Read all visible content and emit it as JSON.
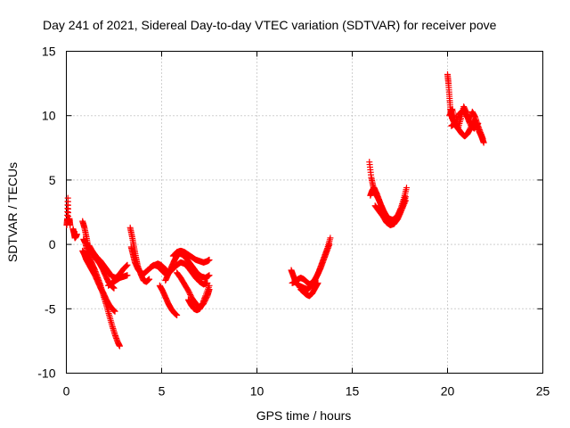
{
  "chart_data": {
    "type": "scatter",
    "title": "Day 241 of 2021, Sidereal Day-to-day VTEC variation (SDTVAR) for receiver pove",
    "xlabel": "GPS time / hours",
    "ylabel": "SDTVAR / TECUs",
    "xlim": [
      0,
      25
    ],
    "ylim": [
      -10,
      15
    ],
    "xticks": [
      0,
      5,
      10,
      15,
      20,
      25
    ],
    "yticks": [
      -10,
      -5,
      0,
      5,
      10,
      15
    ],
    "xtick_labels": [
      "0",
      "5",
      "10",
      "15",
      "20",
      "25"
    ],
    "ytick_labels": [
      "-10",
      "-5",
      "0",
      "5",
      "10",
      "15"
    ],
    "grid": true,
    "marker": "+",
    "series": [
      {
        "name": "SDTVAR",
        "color": "#ff0000",
        "segments": [
          {
            "x": [
              0.02,
              0.05,
              0.08,
              0.1,
              0.13,
              0.16,
              0.2
            ],
            "y": [
              1.5,
              2.0,
              3.6,
              1.9,
              1.7,
              2.0,
              1.5
            ]
          },
          {
            "x": [
              0.35,
              0.4,
              0.45,
              0.5,
              0.55
            ],
            "y": [
              1.2,
              0.9,
              0.5,
              0.6,
              0.8
            ]
          },
          {
            "x": [
              0.85,
              0.95,
              1.05,
              1.15,
              1.3,
              1.45,
              1.6,
              1.75,
              1.9,
              2.05,
              2.2,
              2.35,
              2.5
            ],
            "y": [
              1.8,
              1.3,
              0.6,
              -0.2,
              -0.6,
              -0.9,
              -1.2,
              -1.5,
              -1.9,
              -2.4,
              -2.9,
              -3.2,
              -3.4
            ]
          },
          {
            "x": [
              0.9,
              1.0,
              1.1,
              1.2,
              1.35,
              1.5,
              1.65,
              1.8,
              1.95,
              2.1,
              2.25,
              2.4,
              2.55,
              2.7,
              2.8
            ],
            "y": [
              0.4,
              0.1,
              -0.5,
              -1.0,
              -1.5,
              -2.0,
              -2.6,
              -3.2,
              -4.0,
              -4.7,
              -5.5,
              -6.3,
              -7.0,
              -7.6,
              -7.9
            ]
          },
          {
            "x": [
              0.85,
              0.95,
              1.05,
              1.2,
              1.35,
              1.5,
              1.65,
              1.8,
              1.95,
              2.1,
              2.25,
              2.4,
              2.55
            ],
            "y": [
              -0.5,
              -0.8,
              -1.2,
              -1.6,
              -2.0,
              -2.4,
              -2.9,
              -3.4,
              -3.8,
              -4.3,
              -4.7,
              -5.0,
              -5.2
            ]
          },
          {
            "x": [
              1.2,
              1.4,
              1.6,
              1.8,
              2.0,
              2.2,
              2.4,
              2.6,
              2.8,
              3.0,
              3.2
            ],
            "y": [
              -0.1,
              -0.6,
              -1.0,
              -1.3,
              -1.7,
              -2.1,
              -2.5,
              -2.6,
              -2.3,
              -1.9,
              -1.6
            ]
          },
          {
            "x": [
              2.2,
              2.4,
              2.6,
              2.8,
              3.0,
              3.2
            ],
            "y": [
              -3.2,
              -3.0,
              -2.8,
              -2.6,
              -2.5,
              -2.4
            ]
          },
          {
            "x": [
              3.35,
              3.45,
              3.55,
              3.65,
              3.75,
              3.9,
              4.05,
              4.2,
              4.35
            ],
            "y": [
              1.3,
              0.6,
              -0.2,
              -1.0,
              -1.7,
              -2.3,
              -2.8,
              -2.9,
              -2.7
            ]
          },
          {
            "x": [
              3.4,
              3.5,
              3.6,
              3.75,
              3.9,
              4.05,
              4.2,
              4.35,
              4.5,
              4.65,
              4.8,
              4.95,
              5.1,
              5.25
            ],
            "y": [
              -0.2,
              -0.8,
              -1.4,
              -1.9,
              -2.2,
              -2.3,
              -2.1,
              -1.9,
              -1.7,
              -1.6,
              -1.5,
              -1.6,
              -1.8,
              -2.0
            ]
          },
          {
            "x": [
              4.4,
              4.6,
              4.8,
              5.0,
              5.2,
              5.4,
              5.6,
              5.8,
              6.0,
              6.2,
              6.4,
              6.6,
              6.8,
              7.0,
              7.2,
              7.4
            ],
            "y": [
              -1.8,
              -1.6,
              -1.7,
              -2.0,
              -2.3,
              -2.2,
              -1.9,
              -1.6,
              -1.4,
              -1.5,
              -1.8,
              -2.2,
              -2.6,
              -2.9,
              -3.1,
              -3.0
            ]
          },
          {
            "x": [
              5.2,
              5.35,
              5.5,
              5.65,
              5.8,
              5.95,
              6.1,
              6.3,
              6.5,
              6.7,
              6.9,
              7.1,
              7.3,
              7.5
            ],
            "y": [
              -2.8,
              -2.3,
              -1.8,
              -1.3,
              -0.9,
              -0.7,
              -0.8,
              -1.1,
              -1.5,
              -1.9,
              -2.3,
              -2.5,
              -2.6,
              -2.4
            ]
          },
          {
            "x": [
              4.9,
              5.05,
              5.2,
              5.35,
              5.5,
              5.65,
              5.8
            ],
            "y": [
              -3.2,
              -3.6,
              -4.1,
              -4.6,
              -5.0,
              -5.3,
              -5.5
            ]
          },
          {
            "x": [
              5.6,
              5.8,
              6.0,
              6.2,
              6.4,
              6.6,
              6.8,
              7.0,
              7.2,
              7.4,
              7.5
            ],
            "y": [
              -0.9,
              -0.6,
              -0.5,
              -0.6,
              -0.8,
              -1.0,
              -1.2,
              -1.3,
              -1.4,
              -1.3,
              -1.2
            ]
          },
          {
            "x": [
              5.8,
              6.0,
              6.2,
              6.4,
              6.6,
              6.8,
              7.0,
              7.2,
              7.4,
              7.5
            ],
            "y": [
              -2.2,
              -2.6,
              -3.1,
              -3.6,
              -4.2,
              -4.6,
              -4.9,
              -4.6,
              -4.0,
              -3.5
            ]
          },
          {
            "x": [
              6.4,
              6.55,
              6.7,
              6.85,
              7.0,
              7.15,
              7.3,
              7.5
            ],
            "y": [
              -4.3,
              -4.7,
              -5.0,
              -5.1,
              -5.0,
              -4.6,
              -4.0,
              -3.2
            ]
          },
          {
            "x": [
              11.8,
              11.9,
              12.0,
              12.1,
              12.2,
              12.35,
              12.5,
              12.65,
              12.8,
              12.95,
              13.1,
              13.25,
              13.4,
              13.55,
              13.7,
              13.85
            ],
            "y": [
              -2.0,
              -2.4,
              -2.8,
              -3.1,
              -3.2,
              -3.3,
              -3.4,
              -3.5,
              -3.3,
              -3.0,
              -2.6,
              -2.1,
              -1.5,
              -0.9,
              -0.3,
              0.5
            ]
          },
          {
            "x": [
              11.85,
              12.0,
              12.15,
              12.3,
              12.45,
              12.6,
              12.75,
              12.9,
              13.05,
              13.2,
              13.35,
              13.5,
              13.65,
              13.8
            ],
            "y": [
              -3.0,
              -2.9,
              -2.7,
              -2.6,
              -2.7,
              -2.9,
              -3.1,
              -3.0,
              -2.7,
              -2.3,
              -1.8,
              -1.2,
              -0.6,
              0.0
            ]
          },
          {
            "x": [
              12.3,
              12.45,
              12.6,
              12.75,
              12.9,
              13.05,
              13.2
            ],
            "y": [
              -3.5,
              -3.7,
              -3.9,
              -4.0,
              -3.8,
              -3.4,
              -3.0
            ]
          },
          {
            "x": [
              15.9,
              16.0,
              16.1,
              16.2,
              16.35,
              16.5,
              16.65,
              16.8,
              16.95,
              17.1,
              17.25,
              17.4,
              17.55,
              17.7,
              17.85
            ],
            "y": [
              6.4,
              5.2,
              4.5,
              4.0,
              3.6,
              3.1,
              2.6,
              2.2,
              2.0,
              1.9,
              2.0,
              2.3,
              2.8,
              3.5,
              4.4
            ]
          },
          {
            "x": [
              15.95,
              16.05,
              16.15,
              16.3,
              16.45,
              16.6,
              16.75,
              16.9,
              17.05,
              17.2,
              17.35,
              17.5,
              17.65,
              17.8
            ],
            "y": [
              3.8,
              4.2,
              4.4,
              3.9,
              3.3,
              2.7,
              2.2,
              1.8,
              1.6,
              1.7,
              2.0,
              2.4,
              3.0,
              3.7
            ]
          },
          {
            "x": [
              16.2,
              16.4,
              16.6,
              16.8,
              17.0,
              17.2,
              17.4,
              17.6,
              17.8
            ],
            "y": [
              3.0,
              2.6,
              2.2,
              1.7,
              1.5,
              1.6,
              2.0,
              2.7,
              3.4
            ]
          },
          {
            "x": [
              20.0,
              20.05,
              20.1,
              20.15,
              20.2,
              20.3,
              20.45,
              20.6,
              20.75,
              20.9,
              21.05,
              21.2,
              21.35,
              21.5,
              21.65,
              21.8,
              21.9
            ],
            "y": [
              13.2,
              12.5,
              11.5,
              10.5,
              10.0,
              9.6,
              9.2,
              8.9,
              8.6,
              8.4,
              8.6,
              9.0,
              9.6,
              9.4,
              8.8,
              8.3,
              7.9
            ]
          },
          {
            "x": [
              20.1,
              20.25,
              20.4,
              20.55,
              20.7,
              20.85,
              21.0,
              21.15,
              21.3,
              21.45,
              21.6,
              21.75,
              21.85
            ],
            "y": [
              10.0,
              10.5,
              9.6,
              9.0,
              9.8,
              10.7,
              10.2,
              9.5,
              10.3,
              9.9,
              9.2,
              8.6,
              8.2
            ]
          },
          {
            "x": [
              20.2,
              20.4,
              20.6,
              20.8,
              21.0,
              21.2,
              21.4,
              21.6
            ],
            "y": [
              9.2,
              9.4,
              10.1,
              10.4,
              10.0,
              9.3,
              9.0,
              9.4
            ]
          }
        ]
      }
    ]
  }
}
